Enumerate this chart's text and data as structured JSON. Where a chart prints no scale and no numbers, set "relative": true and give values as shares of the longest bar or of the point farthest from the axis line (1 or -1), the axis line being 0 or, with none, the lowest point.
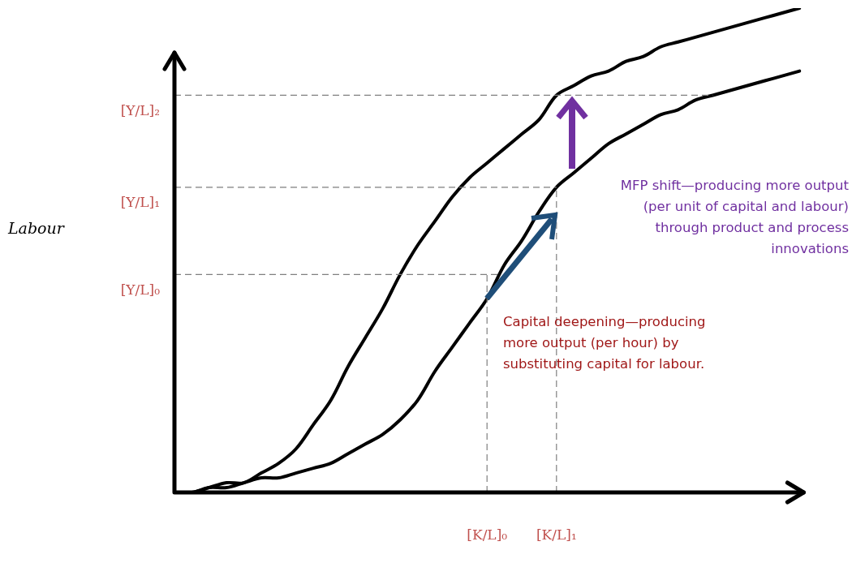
{
  "chart_data": {
    "type": "line",
    "relative": true,
    "legend": false,
    "grid": false,
    "marker": "none",
    "line_style": "solid",
    "categories": [
      null,
      null,
      null,
      null,
      null,
      null,
      null,
      null,
      null,
      null,
      null,
      null,
      null,
      null,
      null,
      null,
      null,
      null,
      "[K/L]₀",
      null,
      null,
      null,
      "[K/L]₁",
      null,
      null,
      null,
      null,
      null,
      null,
      null,
      null,
      null,
      null,
      null,
      null,
      null,
      null
    ],
    "series": [
      {
        "color": "#000000",
        "values": [
          0,
          0,
          0.01,
          0.02,
          0.02,
          0.04,
          0.06,
          0.09,
          0.14,
          0.19,
          0.26,
          0.32,
          0.38,
          0.45,
          0.51,
          0.56,
          0.61,
          0.65,
          0.68,
          0.71,
          0.74,
          0.77,
          0.82,
          0.84,
          0.86,
          0.87,
          0.89,
          0.9,
          0.92,
          0.93,
          0.94,
          0.95,
          0.96,
          0.97,
          0.98,
          0.99,
          1
        ]
      },
      {
        "color": "#000000",
        "values": [
          0,
          0,
          0.01,
          0.01,
          0.02,
          0.03,
          0.03,
          0.04,
          0.05,
          0.06,
          0.08,
          0.1,
          0.12,
          0.15,
          0.19,
          0.25,
          0.3,
          0.35,
          0.4,
          0.47,
          0.52,
          0.58,
          0.63,
          0.66,
          0.69,
          0.72,
          0.74,
          0.76,
          0.78,
          0.79,
          0.81,
          0.82,
          0.83,
          0.84,
          0.85,
          0.86,
          0.87
        ]
      }
    ],
    "ref_lines": [
      {
        "axis": "y",
        "value": 0.82,
        "label": "[Y/L]₂",
        "color": "#7f7f7f",
        "line_style": "dashed"
      },
      {
        "axis": "y",
        "value": 0.63,
        "label": "[Y/L]₁",
        "color": "#7f7f7f",
        "line_style": "dashed"
      },
      {
        "axis": "y",
        "value": 0.45,
        "label": "[Y/L]₀",
        "color": "#7f7f7f",
        "line_style": "dashed"
      },
      {
        "axis": "x",
        "value": "[K/L]₀",
        "color": "#7f7f7f",
        "line_style": "dashed"
      },
      {
        "axis": "x",
        "value": "[K/L]₁",
        "color": "#7f7f7f",
        "line_style": "dashed"
      }
    ],
    "annotations": [
      "MFP shift—producing more output (per unit of capital and labour) through product and process innovations",
      "Capital deepening—producing more output (per hour) by substituting capital for labour.",
      "Labour"
    ]
  }
}
